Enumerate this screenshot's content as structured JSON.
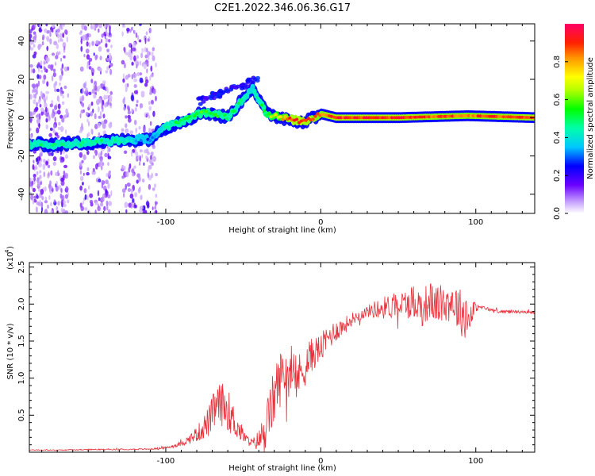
{
  "title": "C2E1.2022.346.06.36.G17",
  "chart_data": [
    {
      "type": "heatmap",
      "xlabel": "Height of straight line (km)",
      "ylabel": "Frequency (Hz)",
      "xlim": [
        -188,
        138
      ],
      "ylim": [
        -50,
        49
      ],
      "xticks": [
        -100,
        0,
        100
      ],
      "yticks": [
        -40,
        -20,
        0,
        20,
        40
      ],
      "colorbar": {
        "label": "Normalized spectral amplitude",
        "range": [
          0.0,
          1.0
        ],
        "ticks": [
          0.0,
          0.2,
          0.4,
          0.6,
          0.8
        ]
      },
      "ridge": [
        {
          "x": -188,
          "y": -14,
          "a": 0.45
        },
        {
          "x": -170,
          "y": -14,
          "a": 0.45
        },
        {
          "x": -150,
          "y": -13,
          "a": 0.45
        },
        {
          "x": -130,
          "y": -12,
          "a": 0.45
        },
        {
          "x": -110,
          "y": -11,
          "a": 0.3
        },
        {
          "x": -100,
          "y": -5,
          "a": 0.45
        },
        {
          "x": -90,
          "y": -2,
          "a": 0.5
        },
        {
          "x": -75,
          "y": 3,
          "a": 0.55
        },
        {
          "x": -60,
          "y": 0,
          "a": 0.5
        },
        {
          "x": -50,
          "y": 10,
          "a": 0.45
        },
        {
          "x": -44,
          "y": 16,
          "a": 0.4
        },
        {
          "x": -35,
          "y": 2,
          "a": 0.55
        },
        {
          "x": -20,
          "y": -1,
          "a": 0.9
        },
        {
          "x": -10,
          "y": -2,
          "a": 0.9
        },
        {
          "x": 0,
          "y": 2,
          "a": 0.85
        },
        {
          "x": 10,
          "y": 0,
          "a": 0.9
        },
        {
          "x": 50,
          "y": 0,
          "a": 0.9
        },
        {
          "x": 95,
          "y": 1,
          "a": 0.85
        },
        {
          "x": 138,
          "y": 0,
          "a": 0.9
        }
      ]
    },
    {
      "type": "line",
      "xlabel": "Height of straight line (km)",
      "ylabel": "SNR (10 * v/v)",
      "ymultiplier": "(x10",
      "ymultiplier_exp": "4",
      "ymultiplier_close": ")",
      "xlim": [
        -188,
        138
      ],
      "ylim": [
        0,
        25600
      ],
      "xticks": [
        -100,
        0,
        100
      ],
      "yticks": [
        0.5,
        1.0,
        1.5,
        2.0,
        2.5
      ],
      "series": [
        {
          "color": "#e8303a",
          "x": [
            -188,
            -170,
            -150,
            -130,
            -110,
            -100,
            -92,
            -85,
            -78,
            -72,
            -68,
            -64,
            -60,
            -56,
            -52,
            -48,
            -44,
            -40,
            -36,
            -32,
            -28,
            -24,
            -20,
            -16,
            -12,
            -8,
            -4,
            0,
            5,
            10,
            15,
            20,
            25,
            30,
            35,
            40,
            45,
            50,
            55,
            60,
            65,
            70,
            75,
            80,
            85,
            90,
            95,
            98,
            100,
            105,
            110,
            115,
            120,
            125,
            130,
            138
          ],
          "y": [
            300,
            280,
            350,
            380,
            420,
            600,
            1000,
            1700,
            2800,
            4200,
            6000,
            6500,
            5800,
            4200,
            2800,
            1700,
            1200,
            1600,
            3000,
            6000,
            9000,
            11000,
            10500,
            9800,
            11000,
            12500,
            13500,
            14000,
            15500,
            16500,
            17000,
            18000,
            18500,
            19000,
            19300,
            19500,
            19700,
            20000,
            20000,
            20500,
            19500,
            20500,
            20000,
            20000,
            20500,
            19000,
            18500,
            19000,
            19500,
            19500,
            19200,
            19000,
            19000,
            19000,
            18900,
            18800
          ],
          "noise": [
            60,
            60,
            70,
            80,
            80,
            150,
            300,
            600,
            1300,
            2200,
            2800,
            3000,
            2800,
            2200,
            1400,
            700,
            600,
            1500,
            2800,
            3800,
            4000,
            3500,
            3200,
            3000,
            3000,
            2600,
            2200,
            2000,
            1800,
            1500,
            1200,
            900,
            700,
            800,
            1200,
            1500,
            1700,
            1800,
            2000,
            2400,
            2600,
            2600,
            2600,
            2600,
            2800,
            3200,
            3600,
            2000,
            500,
            250,
            220,
            200,
            200,
            200,
            200,
            200
          ]
        }
      ]
    }
  ]
}
